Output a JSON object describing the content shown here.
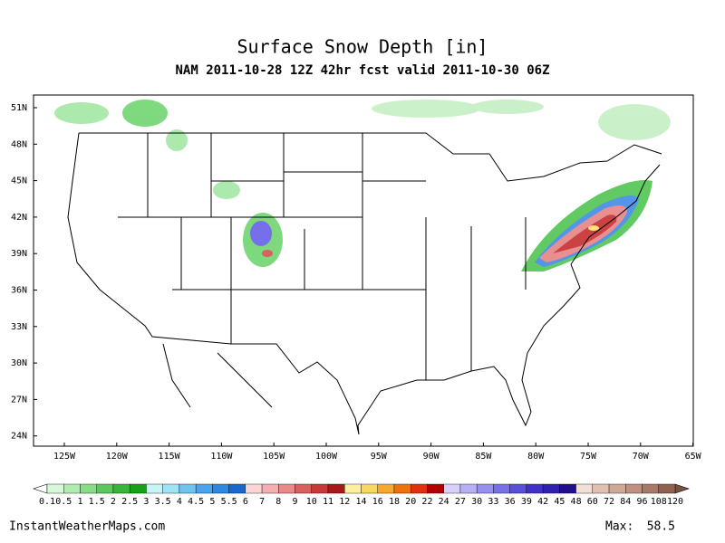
{
  "header": {
    "title": "Surface Snow Depth [in]",
    "subtitle": "NAM 2011-10-28 12Z 42hr fcst valid 2011-10-30 06Z"
  },
  "map": {
    "lat_labels": [
      "51N",
      "48N",
      "45N",
      "42N",
      "39N",
      "36N",
      "33N",
      "30N",
      "27N",
      "24N"
    ],
    "lon_labels": [
      "125W",
      "120W",
      "115W",
      "110W",
      "105W",
      "100W",
      "95W",
      "90W",
      "85W",
      "80W",
      "75W",
      "70W",
      "65W"
    ]
  },
  "legend": {
    "boundaries": [
      0.1,
      0.5,
      1,
      1.5,
      2,
      2.5,
      3,
      3.5,
      4,
      4.5,
      5,
      5.5,
      6,
      7,
      8,
      9,
      10,
      11,
      12,
      14,
      16,
      18,
      20,
      22,
      24,
      27,
      30,
      33,
      36,
      39,
      42,
      45,
      48,
      60,
      72,
      84,
      96,
      108,
      120
    ],
    "under_color": "#ffffff",
    "over_color": "#7a5040",
    "colors": [
      "#d8f8d8",
      "#b0ecb0",
      "#88dc88",
      "#5ac85a",
      "#38b438",
      "#18a018",
      "#c8f4f8",
      "#a0e4f4",
      "#70c4f0",
      "#4aa4ec",
      "#2c88e0",
      "#1868d0",
      "#fcd4d4",
      "#f4b0b0",
      "#e88a8a",
      "#d86060",
      "#c83838",
      "#a81818",
      "#fcf0a0",
      "#f8d860",
      "#f8a830",
      "#f07010",
      "#e03010",
      "#b00000",
      "#d8d0f8",
      "#b8b0f4",
      "#9890f0",
      "#7870e8",
      "#5850d8",
      "#4030c8",
      "#3020b0",
      "#20108c",
      "#f0e0d8",
      "#e0c0b0",
      "#d0a898",
      "#c09080",
      "#a87868",
      "#906050"
    ]
  },
  "footer": {
    "credit": "InstantWeatherMaps.com",
    "max_label": "Max:",
    "max_value": 58.5
  }
}
